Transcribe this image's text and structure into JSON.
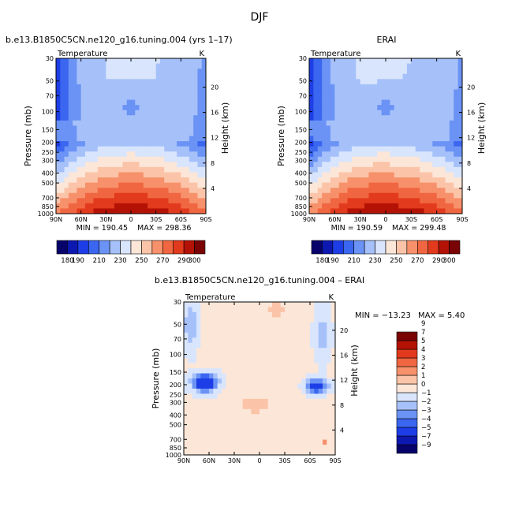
{
  "figure": {
    "main_title": "DJF",
    "top_left_title": "b.e13.B1850C5CN.ne120_g16.tuning.004 (yrs 1–17)",
    "top_right_title": "ERAI",
    "bottom_title": "b.e13.B1850C5CN.ne120_g16.tuning.004 – ERAI"
  },
  "chart_data": [
    {
      "type": "heatmap",
      "id": "model",
      "panel_label": "Temperature",
      "units": "K",
      "title": "b.e13.B1850C5CN.ne120_g16.tuning.004 (yrs 1–17)",
      "xlabel": "",
      "ylabel": "Pressure (mb)",
      "y2label": "Height (km)",
      "x_ticks": [
        "90N",
        "60N",
        "30N",
        "0",
        "30S",
        "60S",
        "90S"
      ],
      "x_values": [
        90,
        60,
        30,
        0,
        -30,
        -60,
        -90
      ],
      "y_ticks": [
        30,
        50,
        70,
        100,
        150,
        200,
        250,
        300,
        400,
        500,
        700,
        850,
        1000
      ],
      "y_tick_labels": [
        "30",
        "50",
        "70",
        "100",
        "150",
        "200",
        "250",
        "300",
        "400",
        "500",
        "700",
        "850",
        "1000"
      ],
      "y2_ticks": [
        4,
        8,
        12,
        16,
        20
      ],
      "y2_tick_labels": [
        "4",
        "8",
        "12",
        "16",
        "20"
      ],
      "ylim": [
        1000,
        30
      ],
      "min_label": "MIN = 190.45",
      "max_label": "MAX = 298.36",
      "min": 190.45,
      "max": 298.36
    },
    {
      "type": "heatmap",
      "id": "erai",
      "panel_label": "Temperature",
      "units": "K",
      "title": "ERAI",
      "xlabel": "",
      "ylabel": "Pressure (mb)",
      "y2label": "Height (km)",
      "x_ticks": [
        "90N",
        "60N",
        "30N",
        "0",
        "30S",
        "60S",
        "90S"
      ],
      "x_values": [
        90,
        60,
        30,
        0,
        -30,
        -60,
        -90
      ],
      "y_ticks": [
        30,
        50,
        70,
        100,
        150,
        200,
        250,
        300,
        400,
        500,
        700,
        850,
        1000
      ],
      "y_tick_labels": [
        "30",
        "50",
        "70",
        "100",
        "150",
        "200",
        "250",
        "300",
        "400",
        "500",
        "700",
        "850",
        "1000"
      ],
      "y2_ticks": [
        4,
        8,
        12,
        16,
        20
      ],
      "y2_tick_labels": [
        "4",
        "8",
        "12",
        "16",
        "20"
      ],
      "ylim": [
        1000,
        30
      ],
      "min_label": "MIN = 190.59",
      "max_label": "MAX = 299.48",
      "min": 190.59,
      "max": 299.48
    },
    {
      "type": "heatmap",
      "id": "diff",
      "panel_label": "Temperature",
      "units": "K",
      "title": "b.e13.B1850C5CN.ne120_g16.tuning.004 – ERAI",
      "xlabel": "",
      "ylabel": "Pressure (mb)",
      "y2label": "Height (km)",
      "x_ticks": [
        "90N",
        "60N",
        "30N",
        "0",
        "30S",
        "60S",
        "90S"
      ],
      "x_values": [
        90,
        60,
        30,
        0,
        -30,
        -60,
        -90
      ],
      "y_ticks": [
        30,
        50,
        70,
        100,
        150,
        200,
        250,
        300,
        400,
        500,
        700,
        850,
        1000
      ],
      "y_tick_labels": [
        "30",
        "50",
        "70",
        "100",
        "150",
        "200",
        "250",
        "300",
        "400",
        "500",
        "700",
        "850",
        "1000"
      ],
      "y2_ticks": [
        4,
        8,
        12,
        16,
        20
      ],
      "y2_tick_labels": [
        "4",
        "8",
        "12",
        "16",
        "20"
      ],
      "ylim": [
        1000,
        30
      ],
      "min_label": "MIN = −13.23",
      "max_label": "MAX =    5.40",
      "min": -13.23,
      "max": 5.4
    }
  ],
  "colorbar_abs": {
    "levels": [
      180,
      190,
      200,
      210,
      220,
      230,
      240,
      250,
      260,
      270,
      280,
      290,
      300
    ],
    "labels": [
      "180",
      "190",
      "210",
      "230",
      "250",
      "270",
      "290",
      "300"
    ],
    "colors": [
      "#08036b",
      "#0d18b0",
      "#1d3ee6",
      "#3a66f0",
      "#6b93f5",
      "#a6c1fa",
      "#d8e5fc",
      "#fce6d8",
      "#fbc4a8",
      "#f7916b",
      "#f06641",
      "#e23a1c",
      "#b41205",
      "#7a0303"
    ]
  },
  "colorbar_diff": {
    "levels": [
      -9,
      -7,
      -5,
      -4,
      -3,
      -2,
      -1,
      0,
      1,
      2,
      3,
      4,
      5,
      7,
      9
    ],
    "labels": [
      "−9",
      "−7",
      "−5",
      "−4",
      "−3",
      "−2",
      "−1",
      "0",
      "1",
      "2",
      "3",
      "4",
      "5",
      "7",
      "9"
    ],
    "colors": [
      "#08036b",
      "#0d18b0",
      "#1d3ee6",
      "#3a66f0",
      "#6b93f5",
      "#a6c1fa",
      "#d8e5fc",
      "#fce6d8",
      "#fbc4a8",
      "#f7916b",
      "#f06641",
      "#e23a1c",
      "#b41205",
      "#7a0303"
    ]
  }
}
